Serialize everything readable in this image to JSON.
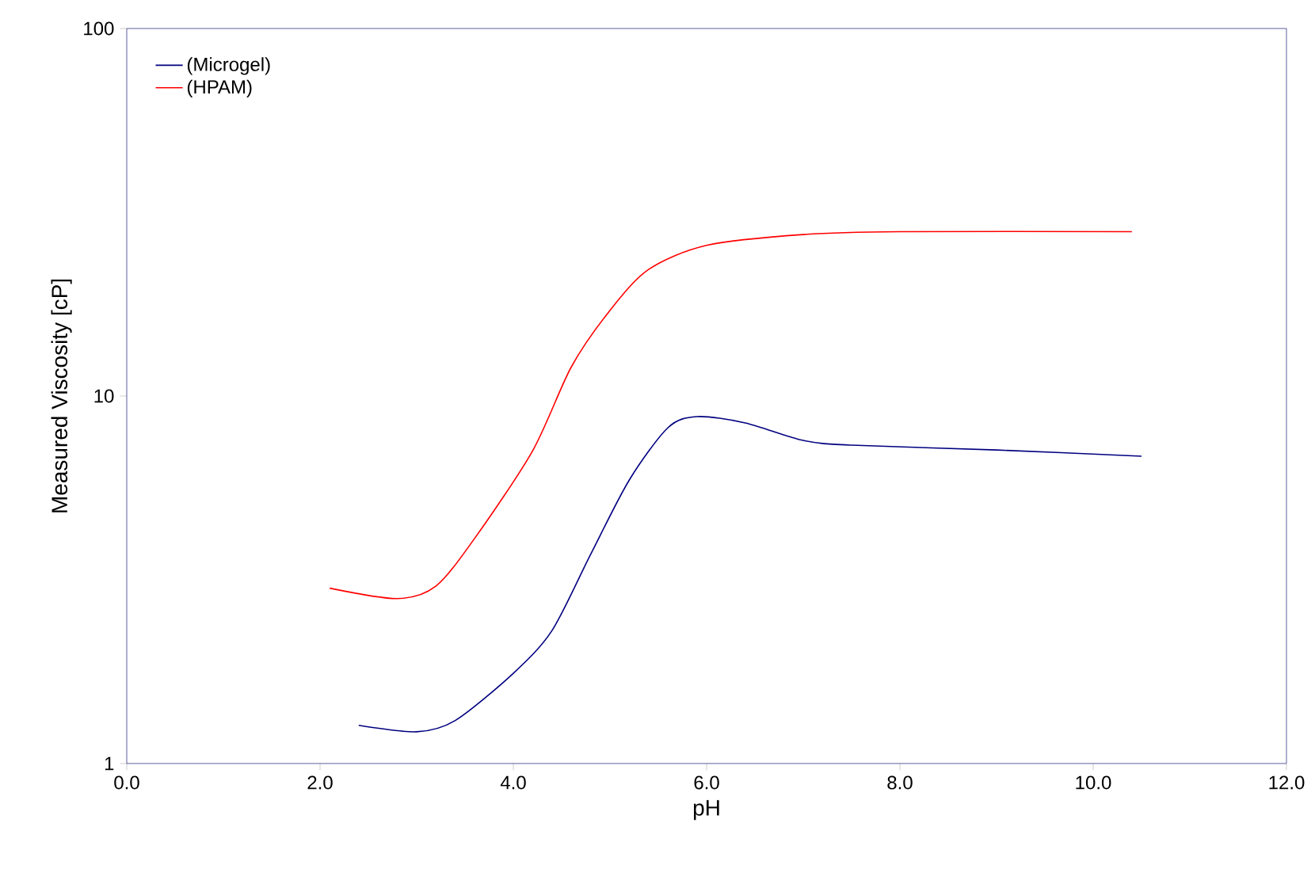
{
  "chart_data": {
    "type": "line",
    "xlabel": "pH",
    "ylabel": "Measured Viscosity [cP]",
    "log": "y",
    "legend": "top left",
    "marker": "none",
    "line_style": "solid",
    "xlim": [
      0,
      12
    ],
    "ylim": [
      1,
      100
    ],
    "xticks": [
      {
        "value": 0,
        "label": "0.0"
      },
      {
        "value": 2,
        "label": "2.0"
      },
      {
        "value": 4,
        "label": "4.0"
      },
      {
        "value": 6,
        "label": "6.0"
      },
      {
        "value": 8,
        "label": "8.0"
      },
      {
        "value": 10,
        "label": "10.0"
      },
      {
        "value": 12,
        "label": "12.0"
      }
    ],
    "yticks": [
      1,
      10,
      100
    ],
    "series": [
      {
        "name": "(Microgel)",
        "color": "#000080",
        "x": [
          2.4,
          3.0,
          3.4,
          4.0,
          4.4,
          4.8,
          5.2,
          5.6,
          5.9,
          6.4,
          7.0,
          7.5,
          9.0,
          10.5
        ],
        "values": [
          1.27,
          1.22,
          1.31,
          1.76,
          2.3,
          3.71,
          5.91,
          8.2,
          8.79,
          8.45,
          7.57,
          7.35,
          7.13,
          6.86
        ]
      },
      {
        "name": "(HPAM)",
        "color": "#ff0000",
        "x": [
          2.1,
          2.8,
          3.2,
          3.6,
          4.2,
          4.6,
          5.0,
          5.4,
          6.0,
          7.0,
          8.0,
          10.4
        ],
        "values": [
          3.0,
          2.81,
          3.04,
          4.1,
          7.1,
          12,
          17.1,
          22.1,
          25.7,
          27.5,
          28.0,
          28.0
        ]
      }
    ]
  }
}
